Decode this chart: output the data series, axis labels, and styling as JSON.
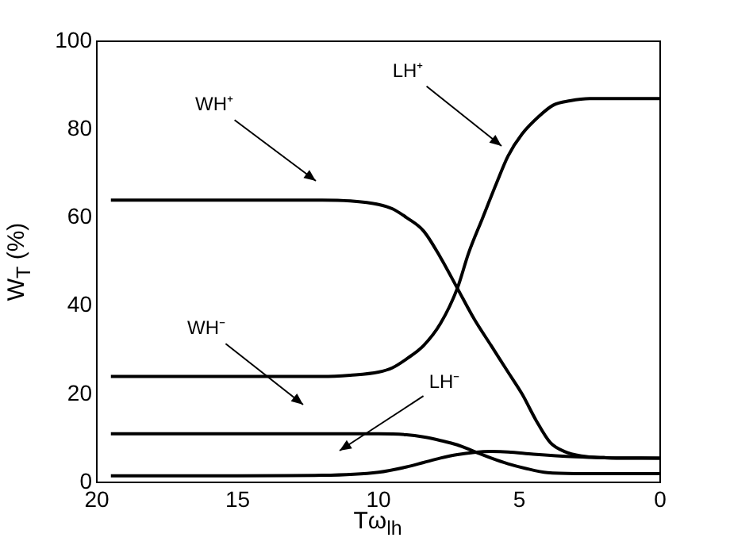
{
  "chart_data": {
    "type": "line",
    "xlabel": "Tω$_{lh}$",
    "ylabel": "W$_{T}$ (%)",
    "xlim": [
      20,
      0
    ],
    "xticks": [
      20,
      15,
      10,
      5,
      0
    ],
    "ylim": [
      0,
      100
    ],
    "yticks": [
      0,
      20,
      40,
      60,
      80,
      100
    ],
    "grid": false,
    "legend": false,
    "marker": "none",
    "line_style": "solid",
    "series": [
      {
        "color": "#000000",
        "x": [
          19.5,
          15,
          12,
          11,
          10,
          9.5,
          9,
          8.4,
          7.8,
          7.2,
          6.6,
          6,
          5.4,
          4.9,
          4.4,
          3.9,
          3.4,
          2.8,
          2,
          1,
          0
        ],
        "values": [
          64,
          64,
          64,
          63.8,
          63,
          62,
          60,
          57,
          51,
          44,
          37,
          31,
          25,
          20,
          14,
          9,
          7,
          6,
          5.6,
          5.5,
          5.5
        ]
      },
      {
        "color": "#000000",
        "x": [
          19.5,
          15,
          12,
          11,
          10,
          9.5,
          9,
          8.4,
          7.8,
          7.2,
          6.8,
          6.3,
          5.8,
          5.4,
          4.9,
          4.3,
          3.8,
          3.2,
          2.5,
          1,
          0
        ],
        "values": [
          24,
          24,
          24,
          24.3,
          25,
          26,
          28,
          31,
          36,
          44,
          52,
          60,
          68,
          74,
          79,
          83,
          85.5,
          86.5,
          87,
          87,
          87
        ]
      },
      {
        "color": "#000000",
        "x": [
          19.5,
          15,
          12,
          10,
          9,
          8.4,
          7.8,
          7.2,
          6.6,
          6,
          5.4,
          4.8,
          4,
          3,
          2,
          0
        ],
        "values": [
          11,
          11,
          11,
          11,
          10.8,
          10.3,
          9.5,
          8.5,
          7,
          5.5,
          4.2,
          3.2,
          2.2,
          2,
          2,
          2
        ]
      },
      {
        "color": "#000000",
        "x": [
          19.5,
          15,
          12,
          10,
          9,
          8.4,
          7.8,
          7.2,
          6.6,
          6,
          5.4,
          4.5,
          3,
          2,
          0
        ],
        "values": [
          1.5,
          1.5,
          1.6,
          2.3,
          3.5,
          4.5,
          5.5,
          6.3,
          6.8,
          7,
          6.9,
          6.4,
          5.8,
          5.6,
          5.5
        ]
      }
    ],
    "annotations": [
      "WH⁺",
      "LH⁺",
      "WH⁻",
      "LH⁻"
    ]
  }
}
